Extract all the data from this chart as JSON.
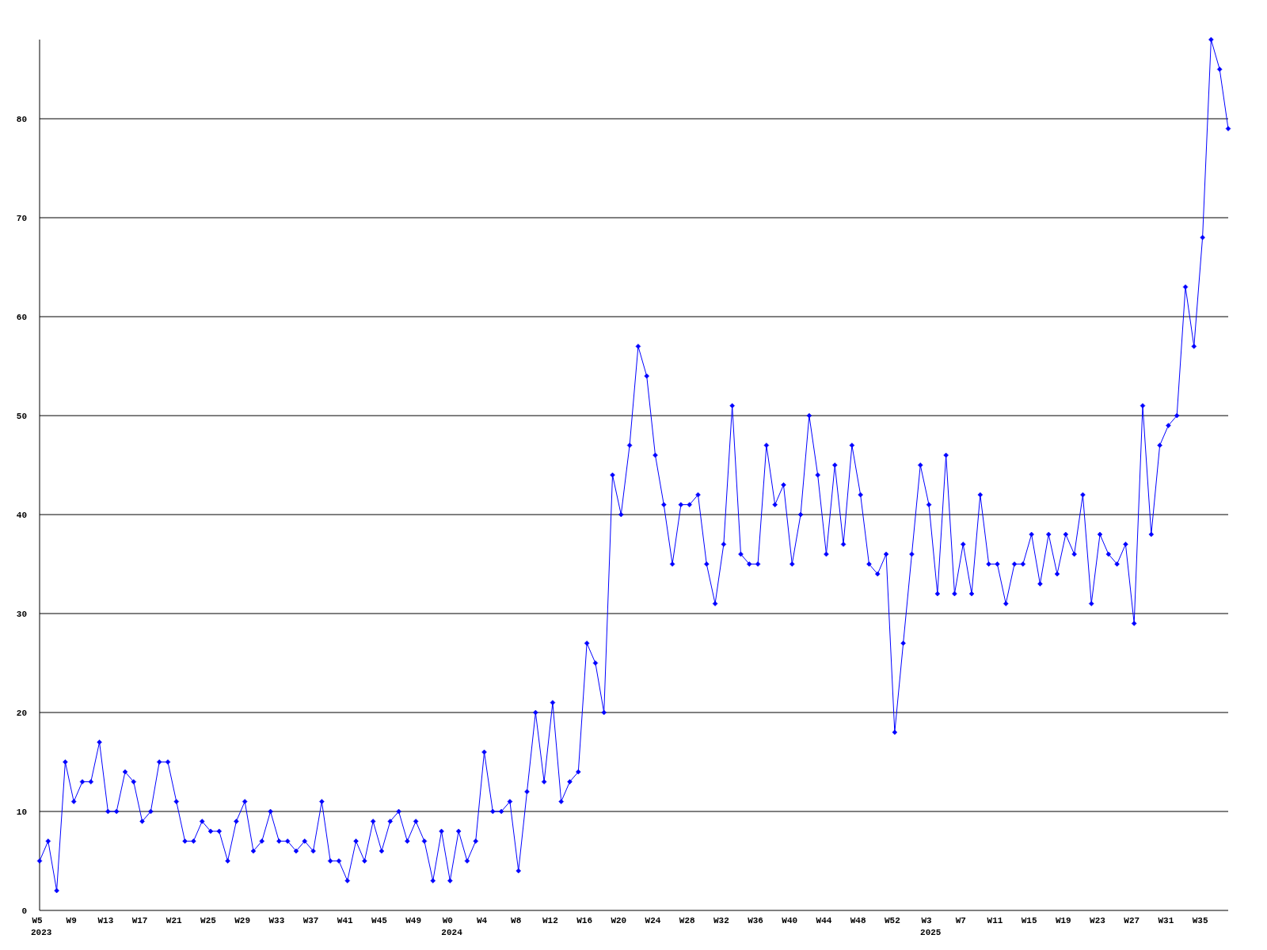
{
  "chart_data": {
    "type": "line",
    "categories": [
      "W5\n2023",
      null,
      null,
      null,
      "W9",
      null,
      null,
      null,
      "W13",
      null,
      null,
      null,
      "W17",
      null,
      null,
      null,
      "W21",
      null,
      null,
      null,
      "W25",
      null,
      null,
      null,
      "W29",
      null,
      null,
      null,
      "W33",
      null,
      null,
      null,
      "W37",
      null,
      null,
      null,
      "W41",
      null,
      null,
      null,
      "W45",
      null,
      null,
      null,
      "W49",
      null,
      null,
      null,
      "W0\n2024",
      null,
      null,
      null,
      "W4",
      null,
      null,
      null,
      "W8",
      null,
      null,
      null,
      "W12",
      null,
      null,
      null,
      "W16",
      null,
      null,
      null,
      "W20",
      null,
      null,
      null,
      "W24",
      null,
      null,
      null,
      "W28",
      null,
      null,
      null,
      "W32",
      null,
      null,
      null,
      "W36",
      null,
      null,
      null,
      "W40",
      null,
      null,
      null,
      "W44",
      null,
      null,
      null,
      "W48",
      null,
      null,
      null,
      "W52",
      null,
      null,
      null,
      "W3\n2025",
      null,
      null,
      null,
      "W7",
      null,
      null,
      null,
      "W11",
      null,
      null,
      null,
      "W15",
      null,
      null,
      null,
      "W19",
      null,
      null,
      null,
      "W23",
      null,
      null,
      null,
      "W27",
      null,
      null,
      null,
      "W31",
      null,
      null,
      null,
      "W35",
      null,
      null,
      null
    ],
    "series": [
      {
        "color": "#0000ff",
        "values": [
          5,
          7,
          2,
          15,
          11,
          13,
          13,
          17,
          10,
          10,
          14,
          13,
          9,
          10,
          15,
          15,
          11,
          7,
          7,
          9,
          8,
          8,
          5,
          9,
          11,
          6,
          7,
          10,
          7,
          7,
          6,
          7,
          6,
          11,
          5,
          5,
          3,
          7,
          5,
          9,
          6,
          9,
          10,
          7,
          9,
          7,
          3,
          8,
          3,
          8,
          5,
          7,
          16,
          10,
          10,
          11,
          4,
          12,
          20,
          13,
          21,
          11,
          13,
          14,
          27,
          25,
          20,
          44,
          40,
          47,
          57,
          54,
          46,
          41,
          35,
          41,
          41,
          42,
          35,
          31,
          37,
          51,
          36,
          35,
          35,
          47,
          41,
          43,
          35,
          40,
          50,
          44,
          36,
          45,
          37,
          47,
          42,
          35,
          34,
          36,
          18,
          27,
          36,
          45,
          41,
          32,
          46,
          32,
          37,
          32,
          42,
          35,
          35,
          31,
          35,
          35,
          38,
          33,
          38,
          34,
          38,
          36,
          42,
          31,
          38,
          36,
          35,
          37,
          29,
          51,
          38,
          47,
          49,
          50,
          63,
          57,
          68,
          88,
          85,
          79
        ]
      }
    ],
    "ylim": [
      0,
      88
    ],
    "yticks": [
      0,
      10,
      20,
      30,
      40,
      50,
      60,
      70,
      80
    ],
    "grid": "y",
    "marker": "diamond",
    "line_style": "solid"
  }
}
